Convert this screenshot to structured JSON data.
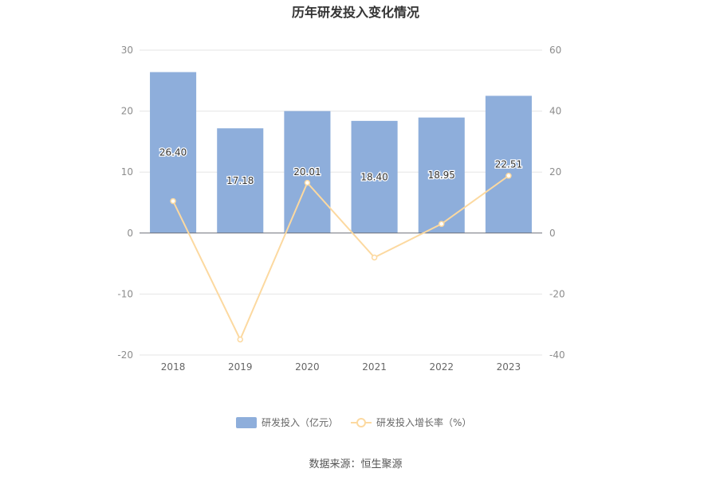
{
  "chart_data": {
    "type": "bar+line",
    "title": "历年研发投入变化情况",
    "categories": [
      "2018",
      "2019",
      "2020",
      "2021",
      "2022",
      "2023"
    ],
    "series": [
      {
        "name": "研发投入（亿元）",
        "type": "bar",
        "axis": "left",
        "color": "#8eaedb",
        "values": [
          26.4,
          17.18,
          20.01,
          18.4,
          18.95,
          22.51
        ],
        "labels": [
          "26.40",
          "17.18",
          "20.01",
          "18.40",
          "18.95",
          "22.51"
        ]
      },
      {
        "name": "研发投入增长率（%）",
        "type": "line",
        "axis": "right",
        "color": "#fcd9a0",
        "values": [
          10.5,
          -34.9,
          16.5,
          -8.0,
          3.0,
          18.8
        ]
      }
    ],
    "y_left": {
      "min": -20,
      "max": 30,
      "ticks": [
        "-20",
        "-10",
        "0",
        "10",
        "20",
        "30"
      ],
      "tick_values": [
        -20,
        -10,
        0,
        10,
        20,
        30
      ]
    },
    "y_right": {
      "min": -40,
      "max": 60,
      "ticks": [
        "-40",
        "-20",
        "0",
        "20",
        "40",
        "60"
      ],
      "tick_values": [
        -40,
        -20,
        0,
        20,
        40,
        60
      ]
    },
    "grid": true,
    "legend_position": "bottom"
  },
  "source_note": "数据来源：恒生聚源"
}
